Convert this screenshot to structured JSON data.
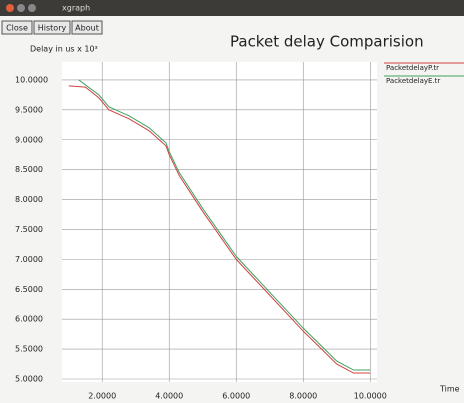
{
  "window": {
    "title": "xgraph",
    "buttons": [
      "Close",
      "History",
      "About"
    ]
  },
  "chart_data": {
    "type": "line",
    "title": "Packet delay Comparision",
    "ylabel": "Delay in us x 10³",
    "xlabel": "Time",
    "xlim": [
      0.8,
      10.2
    ],
    "ylim": [
      4.95,
      10.3
    ],
    "xticks": [
      {
        "value": 2,
        "label": "2.0000"
      },
      {
        "value": 4,
        "label": "4.0000"
      },
      {
        "value": 6,
        "label": "6.0000"
      },
      {
        "value": 8,
        "label": "8.0000"
      },
      {
        "value": 10,
        "label": "10.0000"
      }
    ],
    "yticks": [
      {
        "value": 5,
        "label": "5.0000"
      },
      {
        "value": 5.5,
        "label": "5.5000"
      },
      {
        "value": 6,
        "label": "6.0000"
      },
      {
        "value": 6.5,
        "label": "6.5000"
      },
      {
        "value": 7,
        "label": "7.0000"
      },
      {
        "value": 7.5,
        "label": "7.5000"
      },
      {
        "value": 8,
        "label": "8.0000"
      },
      {
        "value": 8.5,
        "label": "8.5000"
      },
      {
        "value": 9,
        "label": "9.0000"
      },
      {
        "value": 9.5,
        "label": "9.5000"
      },
      {
        "value": 10,
        "label": "10.0000"
      }
    ],
    "grid": true,
    "series": [
      {
        "name": "PacketdelayP.tr",
        "color": "#d04040",
        "x": [
          1.0,
          1.5,
          1.9,
          2.2,
          2.8,
          3.4,
          3.9,
          4.0,
          4.3,
          5.0,
          6.0,
          7.0,
          8.0,
          9.0,
          9.5,
          10.0
        ],
        "values": [
          9.9,
          9.88,
          9.7,
          9.5,
          9.35,
          9.15,
          8.9,
          8.75,
          8.4,
          7.8,
          7.0,
          6.4,
          5.8,
          5.25,
          5.1,
          5.1
        ]
      },
      {
        "name": "PacketdelayE.tr",
        "color": "#40a060",
        "x": [
          1.3,
          1.9,
          2.2,
          2.8,
          3.4,
          3.9,
          4.0,
          4.3,
          5.0,
          6.0,
          7.0,
          8.0,
          9.0,
          9.5,
          10.0
        ],
        "values": [
          10.0,
          9.75,
          9.55,
          9.4,
          9.2,
          8.95,
          8.8,
          8.45,
          7.85,
          7.05,
          6.45,
          5.85,
          5.3,
          5.15,
          5.15
        ]
      }
    ]
  }
}
